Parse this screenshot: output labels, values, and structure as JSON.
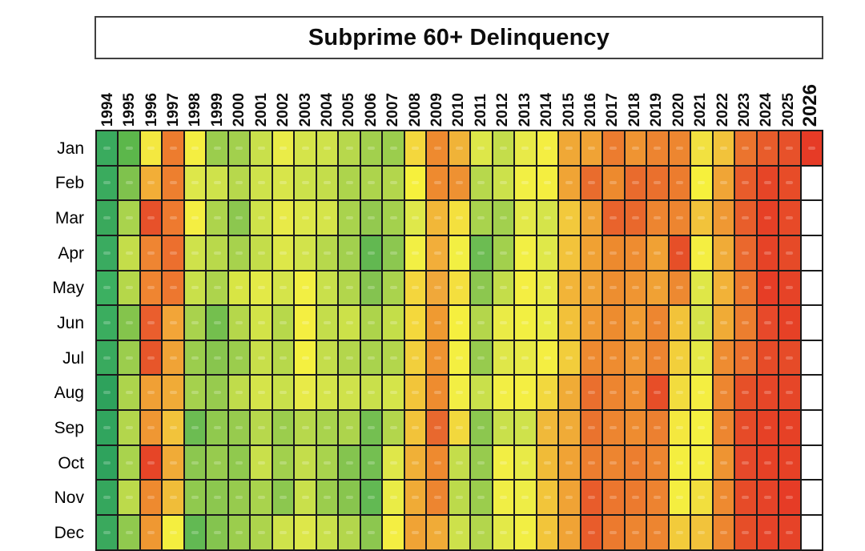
{
  "chart_data": {
    "type": "heatmap",
    "title": "Subprime 60+ Delinquency",
    "x_labels": [
      "1994",
      "1995",
      "1996",
      "1997",
      "1998",
      "1999",
      "2000",
      "2001",
      "2002",
      "2003",
      "2004",
      "2005",
      "2006",
      "2007",
      "2008",
      "2009",
      "2010",
      "2011",
      "2012",
      "2013",
      "2014",
      "2015",
      "2016",
      "2017",
      "2018",
      "2019",
      "2020",
      "2021",
      "2022",
      "2023",
      "2024",
      "2025",
      "2026"
    ],
    "y_labels": [
      "Jan",
      "Feb",
      "Mar",
      "Apr",
      "May",
      "Jun",
      "Jul",
      "Aug",
      "Sep",
      "Oct",
      "Nov",
      "Dec"
    ],
    "legend_position": "none",
    "palette": {
      "low_green": "#2ea25c",
      "mid_yellow": "#f4ee41",
      "high_red": "#e63b26",
      "grid_line": "#1b1b1b",
      "empty_cell": "#ffffff",
      "note": "cell color encodes delinquency level: green=low, yellow=mid, red=high; numeric values not legible in screenshot; null = empty (future month of 2026)"
    },
    "cell_colors": [
      [
        "#3aab5e",
        "#5cb74b",
        "#f4e840",
        "#ed7c2e",
        "#f4ee41",
        "#9bcd4d",
        "#a2d04d",
        "#c9e04b",
        "#eaec48",
        "#d5e44a",
        "#cfe24b",
        "#b7d84c",
        "#a2d04d",
        "#9bcd4d",
        "#f4d73d",
        "#ee8a2f",
        "#f0b338",
        "#dde749",
        "#c4dd4b",
        "#e8ea48",
        "#f4ee42",
        "#f0a836",
        "#f0a335",
        "#ec7c2f",
        "#ef9432",
        "#ed8430",
        "#ed8630",
        "#f2e140",
        "#f2c33b",
        "#eb742e",
        "#e85c2b",
        "#e7512a",
        "#e63b26"
      ],
      [
        "#3aab5e",
        "#7fc24d",
        "#f2ae37",
        "#ed7f2f",
        "#dde74a",
        "#cfe24b",
        "#b7d84c",
        "#cfe24b",
        "#d8e54a",
        "#cce14b",
        "#c4dd4b",
        "#add44c",
        "#add44c",
        "#b3d64c",
        "#f6f03c",
        "#ee8a2f",
        "#ee9132",
        "#b7d84c",
        "#cce14b",
        "#f2ef44",
        "#f4ee40",
        "#f0a435",
        "#e96c2d",
        "#ed8a2e",
        "#e96b2d",
        "#ea702d",
        "#ec7c2e",
        "#f6f03c",
        "#f0a536",
        "#e85c2b",
        "#e64527",
        "#e74c28",
        null
      ],
      [
        "#3aa95c",
        "#a9d34d",
        "#e7512a",
        "#ee7a2f",
        "#f4ee42",
        "#add44c",
        "#8cc74f",
        "#cfe24a",
        "#e8ea48",
        "#dde74a",
        "#d5e44a",
        "#a9d34d",
        "#93c94f",
        "#a4d14d",
        "#dfe84a",
        "#f2b738",
        "#f4e03e",
        "#a9d34d",
        "#a2d04e",
        "#e3e949",
        "#d5e44a",
        "#f2c93c",
        "#f0a435",
        "#e9632c",
        "#e9682c",
        "#ed8530",
        "#ed8530",
        "#f2c33b",
        "#ef9833",
        "#e85e2b",
        "#e64026",
        "#e74a28",
        null
      ],
      [
        "#3aab60",
        "#c4dd4a",
        "#ef8532",
        "#ec6f2e",
        "#cfe24b",
        "#b9d94b",
        "#a7d24d",
        "#c4dd4a",
        "#dde749",
        "#d2e34b",
        "#b7d84c",
        "#a2d04e",
        "#62b851",
        "#8cc750",
        "#f2ef44",
        "#f2ae3a",
        "#f2ef43",
        "#6cbc52",
        "#a2d04d",
        "#f2ef44",
        "#dfe849",
        "#f2c33b",
        "#f0a133",
        "#ed8a2e",
        "#ee8c30",
        "#f0a134",
        "#e64f28",
        "#f4ee41",
        "#f0ab37",
        "#ea682d",
        "#e64327",
        "#e64a28",
        null
      ],
      [
        "#3cb061",
        "#b5d74a",
        "#ef8531",
        "#ed772f",
        "#c9e04a",
        "#add44c",
        "#d8e544",
        "#e3e947",
        "#d5e44a",
        "#f2ef43",
        "#c9e04b",
        "#b2d64c",
        "#84c350",
        "#aad34d",
        "#f4d63d",
        "#f0a83a",
        "#f4df3e",
        "#8cc74f",
        "#c4dd4a",
        "#f4ee42",
        "#e8ea47",
        "#f2b438",
        "#f0a235",
        "#ed8e30",
        "#ef9532",
        "#f0a134",
        "#ed8931",
        "#dfe747",
        "#f2b238",
        "#ec7a2e",
        "#e63d26",
        "#e64327",
        null
      ],
      [
        "#3bad5f",
        "#84c44c",
        "#ea5e2d",
        "#f2a538",
        "#a9d24d",
        "#74bf4e",
        "#b5d74b",
        "#d2e348",
        "#b7d84b",
        "#f4ee41",
        "#c4dd4b",
        "#cce149",
        "#add44b",
        "#c4de49",
        "#f4d83c",
        "#ef9a31",
        "#f5ef3f",
        "#b4d64b",
        "#eaeb46",
        "#f2ef42",
        "#eaec46",
        "#f2c13a",
        "#f09a33",
        "#ed8c2f",
        "#f09c33",
        "#ed8630",
        "#f2c33a",
        "#d5e349",
        "#f0ab36",
        "#ec7e2f",
        "#e7492a",
        "#e64126",
        null
      ],
      [
        "#39aa5e",
        "#9bcd4d",
        "#e7562a",
        "#f0a336",
        "#9bcd4d",
        "#88c54e",
        "#9bcd4d",
        "#c8df4a",
        "#b7d84b",
        "#f4f040",
        "#c4dd4b",
        "#b3d64c",
        "#a9d34d",
        "#b3d64c",
        "#f2cf3c",
        "#ef9431",
        "#f4ef41",
        "#97cb4e",
        "#dfe749",
        "#e8ea47",
        "#f4ee42",
        "#f2cd3b",
        "#ee8a30",
        "#ee8c30",
        "#f09834",
        "#ed8530",
        "#f2cf3b",
        "#e5e946",
        "#ee8c31",
        "#eb722e",
        "#e64b28",
        "#e64b28",
        null
      ],
      [
        "#2ea25c",
        "#add44c",
        "#f0a035",
        "#f0ab37",
        "#a5d14d",
        "#97cb4e",
        "#c0dc4b",
        "#d5e44a",
        "#c9e04b",
        "#e8ea48",
        "#d5e44a",
        "#cfe24b",
        "#c9e04b",
        "#d5e44a",
        "#f2c53a",
        "#ee8c2f",
        "#f2ee44",
        "#c9e04b",
        "#f2ee44",
        "#f4ee42",
        "#f2d83e",
        "#f0ab36",
        "#ea6f2e",
        "#ed8530",
        "#ef8f31",
        "#e74e28",
        "#f2dc3e",
        "#f4ee41",
        "#ed8630",
        "#e65028",
        "#e64628",
        "#e64628",
        null
      ],
      [
        "#31a55e",
        "#b3d64c",
        "#ef9733",
        "#f2c33b",
        "#6cbc52",
        "#90c94e",
        "#97cb4e",
        "#b7d84c",
        "#9bcd4d",
        "#b7d84c",
        "#a9d34d",
        "#add44c",
        "#74bf51",
        "#b3d64c",
        "#f2c33a",
        "#e8682e",
        "#f2d83d",
        "#8cc74f",
        "#c9e04b",
        "#cfe24b",
        "#f0b93a",
        "#f0ab37",
        "#ea732e",
        "#ed8530",
        "#ee8c30",
        "#ec8030",
        "#f4e83f",
        "#f4f041",
        "#ed8630",
        "#e64b28",
        "#e64126",
        "#e64126",
        null
      ],
      [
        "#2fa35d",
        "#a9d34d",
        "#e64527",
        "#f0ab37",
        "#8cc74f",
        "#97cb4e",
        "#90c94e",
        "#c9e04b",
        "#a2d04d",
        "#c4dd4b",
        "#a9d34d",
        "#84c44f",
        "#74bf51",
        "#dfe749",
        "#f0b037",
        "#ee8a2f",
        "#c4dd4b",
        "#97cb4e",
        "#f2ee44",
        "#e8ea47",
        "#f0bb38",
        "#f0a335",
        "#ec7e2f",
        "#ed8530",
        "#ec7e2f",
        "#ed8630",
        "#f4ee40",
        "#f4ee40",
        "#ee9432",
        "#e6492a",
        "#e64126",
        "#e64126",
        null
      ],
      [
        "#35a75d",
        "#bcda4b",
        "#ee8a2f",
        "#f0bd39",
        "#90c94e",
        "#8cc74f",
        "#97cb4e",
        "#a9d34d",
        "#8cc74f",
        "#c9e04b",
        "#9bcd4d",
        "#88c54e",
        "#62b953",
        "#eaec46",
        "#f0ab36",
        "#ed8530",
        "#bcda4b",
        "#9bcd4d",
        "#f0ee45",
        "#eeed46",
        "#f2c53a",
        "#f0a335",
        "#e85c2b",
        "#ec762e",
        "#ec7a2e",
        "#ed8330",
        "#f4ee40",
        "#f2df3e",
        "#ee8a30",
        "#e64b28",
        "#e64328",
        "#e63c26",
        null
      ],
      [
        "#3aa95d",
        "#90c94e",
        "#ef9832",
        "#f4ee3f",
        "#62b953",
        "#84c44f",
        "#9bcd4d",
        "#add44c",
        "#cfe24b",
        "#dde74a",
        "#c9e04b",
        "#b3d64c",
        "#8cc74f",
        "#f4ee42",
        "#f0a335",
        "#f0ab37",
        "#cde14b",
        "#b3d64c",
        "#e3e948",
        "#f2ee43",
        "#f2c53a",
        "#f0a335",
        "#e85c2b",
        "#ec7a2e",
        "#ed8530",
        "#ed8530",
        "#f2cb3b",
        "#f2c33b",
        "#ed8630",
        "#e64e28",
        "#e64328",
        "#e64328",
        null
      ]
    ]
  }
}
